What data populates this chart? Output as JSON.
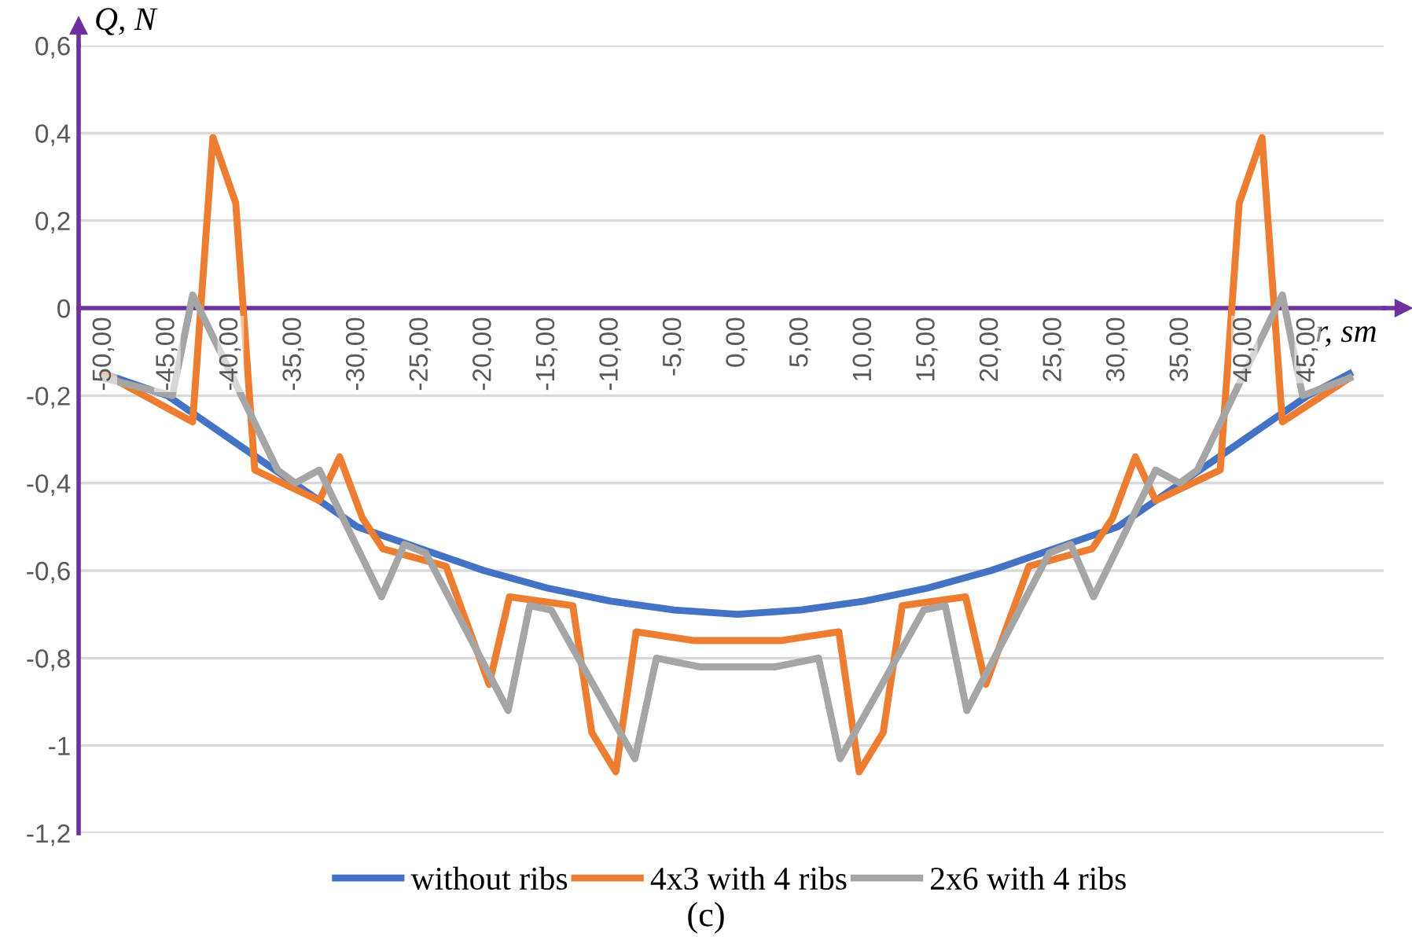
{
  "chart_data": {
    "type": "line",
    "xlabel": "r, sm",
    "ylabel": "Q, N",
    "annotations": [
      "(c)"
    ],
    "xlim": [
      -52,
      51
    ],
    "ylim": [
      -1.2,
      0.6
    ],
    "xticks": [
      {
        "value": -50,
        "label": "-50,00"
      },
      {
        "value": -45,
        "label": "-45,00"
      },
      {
        "value": -40,
        "label": "-40,00"
      },
      {
        "value": -35,
        "label": "-35,00"
      },
      {
        "value": -30,
        "label": "-30,00"
      },
      {
        "value": -25,
        "label": "-25,00"
      },
      {
        "value": -20,
        "label": "-20,00"
      },
      {
        "value": -15,
        "label": "-15,00"
      },
      {
        "value": -10,
        "label": "-10,00"
      },
      {
        "value": -5,
        "label": "-5,00"
      },
      {
        "value": 0,
        "label": "0,00"
      },
      {
        "value": 5,
        "label": "5,00"
      },
      {
        "value": 10,
        "label": "10,00"
      },
      {
        "value": 15,
        "label": "15,00"
      },
      {
        "value": 20,
        "label": "20,00"
      },
      {
        "value": 25,
        "label": "25,00"
      },
      {
        "value": 30,
        "label": "30,00"
      },
      {
        "value": 35,
        "label": "35,00"
      },
      {
        "value": 40,
        "label": "40,00"
      },
      {
        "value": 45,
        "label": "45,00"
      }
    ],
    "yticks": [
      {
        "value": 0.6,
        "label": "0,6"
      },
      {
        "value": 0.4,
        "label": "0,4"
      },
      {
        "value": 0.2,
        "label": "0,2"
      },
      0,
      {
        "value": -0.2,
        "label": "-0,2"
      },
      {
        "value": -0.4,
        "label": "-0,4"
      },
      {
        "value": -0.6,
        "label": "-0,6"
      },
      {
        "value": -0.8,
        "label": "-0,8"
      },
      -1,
      {
        "value": -1.2,
        "label": "-1,2"
      }
    ],
    "grid": "y",
    "legend": "bottom",
    "line_style": "solid",
    "series": [
      {
        "name": "without ribs",
        "color": "#4472c4",
        "x": [
          -50,
          -45,
          -40,
          -35,
          -30,
          -25,
          -20,
          -15,
          -10,
          -5,
          0,
          5,
          10,
          15,
          20,
          25,
          30,
          35,
          40,
          45,
          48.3
        ],
        "values": [
          -0.15,
          -0.2,
          -0.3,
          -0.4,
          -0.5,
          -0.55,
          -0.6,
          -0.64,
          -0.67,
          -0.69,
          -0.7,
          -0.69,
          -0.67,
          -0.64,
          -0.6,
          -0.55,
          -0.5,
          -0.4,
          -0.3,
          -0.2,
          -0.15
        ]
      },
      {
        "name": "4x3 with 4 ribs",
        "color": "#ed7d31",
        "x": [
          -50,
          -43,
          -41.4,
          -39.6,
          -38.1,
          -33,
          -31.4,
          -29.6,
          -28,
          -23,
          -19.6,
          -18,
          -13,
          -11.5,
          -9.6,
          -8,
          -3.4,
          0,
          3.4,
          8,
          9.6,
          11.5,
          13,
          18,
          19.6,
          23,
          28,
          29.6,
          31.4,
          33,
          38.1,
          39.6,
          41.4,
          43,
          48.3
        ],
        "values": [
          -0.15,
          -0.26,
          0.39,
          0.24,
          -0.37,
          -0.44,
          -0.34,
          -0.48,
          -0.55,
          -0.59,
          -0.86,
          -0.66,
          -0.68,
          -0.97,
          -1.06,
          -0.74,
          -0.76,
          -0.76,
          -0.76,
          -0.74,
          -1.06,
          -0.97,
          -0.68,
          -0.66,
          -0.86,
          -0.59,
          -0.55,
          -0.48,
          -0.34,
          -0.44,
          -0.37,
          0.24,
          0.39,
          -0.26,
          -0.16
        ]
      },
      {
        "name": "2x6 with 4 ribs",
        "color": "#a5a5a5",
        "x": [
          -50,
          -44.6,
          -43,
          -36.3,
          -34.9,
          -33,
          -28.1,
          -26.3,
          -24.6,
          -18.1,
          -16.4,
          -14.7,
          -8.1,
          -6.4,
          -3,
          0,
          3,
          6.4,
          8.1,
          14.7,
          16.4,
          18.1,
          24.6,
          26.3,
          28.1,
          33,
          34.9,
          36.3,
          43,
          44.6,
          48.3
        ],
        "values": [
          -0.16,
          -0.2,
          0.03,
          -0.37,
          -0.4,
          -0.37,
          -0.66,
          -0.54,
          -0.56,
          -0.92,
          -0.68,
          -0.69,
          -1.03,
          -0.8,
          -0.82,
          -0.82,
          -0.82,
          -0.8,
          -1.03,
          -0.69,
          -0.68,
          -0.92,
          -0.56,
          -0.54,
          -0.66,
          -0.37,
          -0.4,
          -0.37,
          0.03,
          -0.2,
          -0.16
        ]
      }
    ]
  }
}
